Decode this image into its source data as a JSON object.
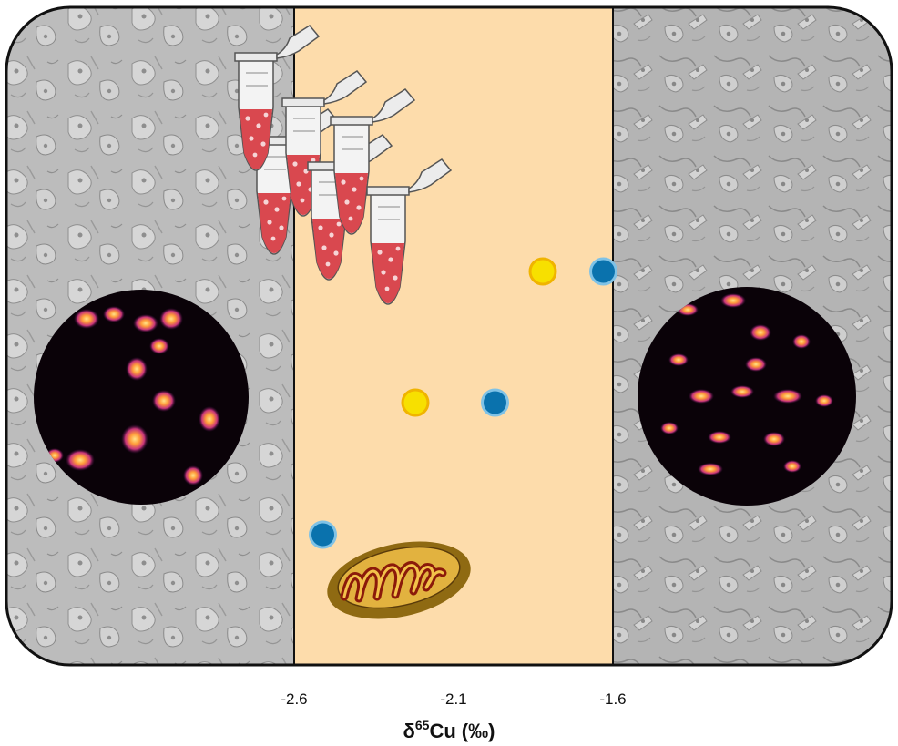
{
  "chart_data": {
    "type": "scatter",
    "x_ticks": [
      "-2.6",
      "-2.1",
      "-1.6"
    ],
    "xlim": [
      -2.6,
      -1.6
    ],
    "axis_title": {
      "symbol": "δ",
      "superscript": "65",
      "element": "Cu",
      "unit": "(‰)"
    },
    "series": [
      {
        "color": "#f7e000",
        "points": [
          {
            "x": -1.82,
            "y": 3
          },
          {
            "x": -2.22,
            "y": 2
          }
        ]
      },
      {
        "color": "#0a72ad",
        "points": [
          {
            "x": -1.63,
            "y": 3
          },
          {
            "x": -1.97,
            "y": 2
          },
          {
            "x": -2.51,
            "y": 1
          }
        ]
      }
    ],
    "y_levels": 3
  },
  "colors": {
    "band": "#fddcab",
    "cell_background": "#bdbdbd",
    "mitochondrion": "#e2b23f",
    "tube_liquid": "#d9484f"
  },
  "icons": [
    "microtube-icon",
    "mitochondrion-icon",
    "cell-micrograph",
    "fluorescence-image"
  ]
}
